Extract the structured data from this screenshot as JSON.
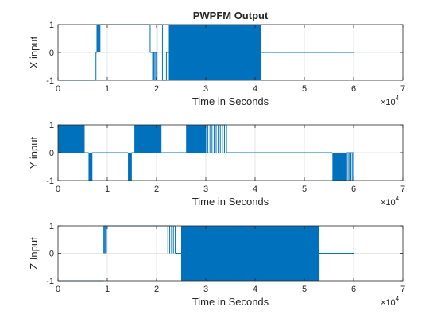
{
  "chart_data": [
    {
      "type": "line",
      "title": "PWPFM Output",
      "xlabel": "Time in Seconds",
      "ylabel": "X input",
      "xlim": [
        0,
        70000
      ],
      "ylim": [
        -1,
        1
      ],
      "xticks": [
        0,
        10000,
        20000,
        30000,
        40000,
        50000,
        60000,
        70000
      ],
      "xtick_labels": [
        "0",
        "1",
        "2",
        "3",
        "4",
        "5",
        "6",
        "7"
      ],
      "yticks": [
        -1,
        0,
        1
      ],
      "ytick_labels": [
        "-1",
        "0",
        "1"
      ],
      "x_multiplier": {
        "base": "×10",
        "exponent": "4"
      },
      "grid": true,
      "series": [
        {
          "color": "#0072BD",
          "segments": [
            {
              "kind": "level",
              "x0": 0,
              "x1": 7700,
              "y": -1
            },
            {
              "kind": "level",
              "x0": 7700,
              "x1": 7900,
              "y": 0
            },
            {
              "kind": "pulses",
              "x0": 7900,
              "x1": 8500,
              "ymin": 0,
              "ymax": 1,
              "count": 4
            },
            {
              "kind": "level",
              "x0": 8500,
              "x1": 18700,
              "y": 1
            },
            {
              "kind": "level",
              "x0": 18700,
              "x1": 19200,
              "y": 0
            },
            {
              "kind": "pulses",
              "x0": 19200,
              "x1": 20100,
              "ymin": -1,
              "ymax": 0,
              "count": 4
            },
            {
              "kind": "level",
              "x0": 20100,
              "x1": 21200,
              "y": 1
            },
            {
              "kind": "level",
              "x0": 21200,
              "x1": 22000,
              "y": -1
            },
            {
              "kind": "level",
              "x0": 22000,
              "x1": 22500,
              "y": 0
            },
            {
              "kind": "fill",
              "x0": 22500,
              "x1": 41200,
              "ymin": -1,
              "ymax": 1
            },
            {
              "kind": "level",
              "x0": 41200,
              "x1": 60000,
              "y": 0
            }
          ]
        }
      ]
    },
    {
      "type": "line",
      "xlabel": "Time in Seconds",
      "ylabel": "Y input",
      "xlim": [
        0,
        70000
      ],
      "ylim": [
        -1,
        1
      ],
      "xticks": [
        0,
        10000,
        20000,
        30000,
        40000,
        50000,
        60000,
        70000
      ],
      "xtick_labels": [
        "0",
        "1",
        "2",
        "3",
        "4",
        "5",
        "6",
        "7"
      ],
      "yticks": [
        -1,
        0,
        1
      ],
      "ytick_labels": [
        "-1",
        "0",
        "1"
      ],
      "x_multiplier": {
        "base": "×10",
        "exponent": "4"
      },
      "grid": true,
      "series": [
        {
          "color": "#0072BD",
          "segments": [
            {
              "kind": "fill",
              "x0": 0,
              "x1": 5400,
              "ymin": 0,
              "ymax": 1
            },
            {
              "kind": "level",
              "x0": 5400,
              "x1": 6200,
              "y": 0
            },
            {
              "kind": "fill",
              "x0": 6200,
              "x1": 6900,
              "ymin": -1,
              "ymax": 0
            },
            {
              "kind": "level",
              "x0": 6900,
              "x1": 14200,
              "y": 0
            },
            {
              "kind": "fill",
              "x0": 14200,
              "x1": 14900,
              "ymin": -1,
              "ymax": 0
            },
            {
              "kind": "level",
              "x0": 14900,
              "x1": 15500,
              "y": 0
            },
            {
              "kind": "fill",
              "x0": 15500,
              "x1": 21000,
              "ymin": 0,
              "ymax": 1
            },
            {
              "kind": "level",
              "x0": 21000,
              "x1": 26000,
              "y": 0
            },
            {
              "kind": "fill",
              "x0": 26000,
              "x1": 30000,
              "ymin": 0,
              "ymax": 1
            },
            {
              "kind": "pulses",
              "x0": 30000,
              "x1": 34200,
              "ymin": 0,
              "ymax": 1,
              "count": 10
            },
            {
              "kind": "level",
              "x0": 34200,
              "x1": 55700,
              "y": 0
            },
            {
              "kind": "fill",
              "x0": 55700,
              "x1": 58600,
              "ymin": -1,
              "ymax": 0
            },
            {
              "kind": "pulses",
              "x0": 58600,
              "x1": 60000,
              "ymin": -1,
              "ymax": 0,
              "count": 5
            }
          ]
        }
      ]
    },
    {
      "type": "line",
      "xlabel": "Time in Seconds",
      "ylabel": "Z Input",
      "xlim": [
        0,
        70000
      ],
      "ylim": [
        -1,
        1
      ],
      "xticks": [
        0,
        10000,
        20000,
        30000,
        40000,
        50000,
        60000,
        70000
      ],
      "xtick_labels": [
        "0",
        "1",
        "2",
        "3",
        "4",
        "5",
        "6",
        "7"
      ],
      "yticks": [
        -1,
        0,
        1
      ],
      "ytick_labels": [
        "-1",
        "0",
        "1"
      ],
      "x_multiplier": {
        "base": "×10",
        "exponent": "4"
      },
      "grid": true,
      "series": [
        {
          "color": "#0072BD",
          "segments": [
            {
              "kind": "level",
              "x0": 0,
              "x1": 9300,
              "y": -1
            },
            {
              "kind": "pulses",
              "x0": 9300,
              "x1": 9800,
              "ymin": 0,
              "ymax": 1,
              "count": 3
            },
            {
              "kind": "level",
              "x0": 9800,
              "x1": 22300,
              "y": 1
            },
            {
              "kind": "pulses",
              "x0": 22300,
              "x1": 23800,
              "ymin": 0,
              "ymax": 1,
              "count": 4
            },
            {
              "kind": "level",
              "x0": 23800,
              "x1": 25000,
              "y": 0
            },
            {
              "kind": "fill",
              "x0": 25000,
              "x1": 53000,
              "ymin": -1,
              "ymax": 1
            },
            {
              "kind": "level",
              "x0": 53000,
              "x1": 60000,
              "y": 0
            }
          ]
        }
      ]
    }
  ]
}
